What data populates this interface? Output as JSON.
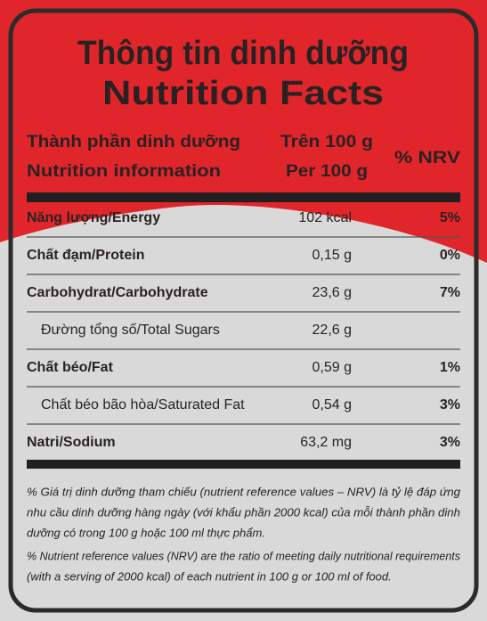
{
  "title_vi": "Thông tin dinh dưỡng",
  "title_en": "Nutrition Facts",
  "header": {
    "name_vi": "Thành phần dinh dưỡng",
    "name_en": "Nutrition information",
    "per_vi": "Trên 100 g",
    "per_en": "Per 100 g",
    "nrv": "% NRV"
  },
  "rows": [
    {
      "name": "Năng lượng/Energy",
      "value": "102 kcal",
      "nrv": "5%"
    },
    {
      "name": "Chất đạm/Protein",
      "value": "0,15 g",
      "nrv": "0%"
    },
    {
      "name": "Carbohydrat/Carbohydrate",
      "value": "23,6 g",
      "nrv": "7%",
      "children": [
        {
          "name": "Đường tổng số/Total Sugars",
          "value": "22,6 g"
        }
      ]
    },
    {
      "name": "Chất béo/Fat",
      "value": "0,59 g",
      "nrv": "1%",
      "children": [
        {
          "name": "Chất béo bão hòa/Saturated Fat",
          "value": "0,54 g",
          "nrv": "3%"
        }
      ]
    },
    {
      "name": "Natri/Sodium",
      "value": "63,2 mg",
      "nrv": "3%"
    }
  ],
  "notes": [
    [
      "% Giá trị dinh dưỡng tham chiếu (nutrient reference values – NRV) là tỷ lệ đáp ứng",
      "nhu cầu dinh dưỡng hàng ngày (với khẩu phần 2000 kcal) của mỗi thành phần dinh",
      "dưỡng có trong 100 g hoặc 100 ml thực phẩm."
    ],
    [
      "% Nutrient reference values (NRV) are the ratio of meeting daily nutritional requirements",
      "(with a serving of 2000 kcal) of each nutrient in 100 g or 100 ml of food."
    ]
  ]
}
